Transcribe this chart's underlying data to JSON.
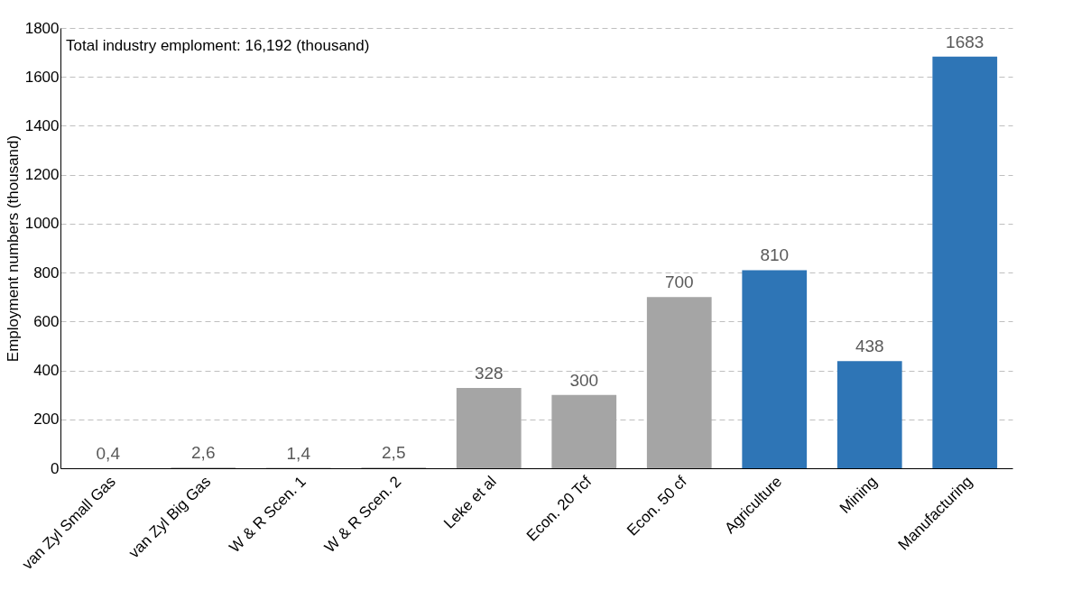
{
  "chart_data": {
    "type": "bar",
    "ylabel": "Employment numbers (thousand)",
    "annotations": [
      "Total industry emploment: 16,192 (thousand)"
    ],
    "categories": [
      "van Zyl Small Gas",
      "van Zyl Big Gas",
      "W & R Scen. 1",
      "W & R Scen. 2",
      "Leke et al",
      "Econ. 20 Tcf",
      "Econ. 50 cf",
      "Agriculture",
      "Mining",
      "Manufacturing"
    ],
    "values": [
      0.4,
      2.6,
      1.4,
      2.5,
      328,
      300,
      700,
      810,
      438,
      1683
    ],
    "value_labels": [
      "0,4",
      "2,6",
      "1,4",
      "2,5",
      "328",
      "300",
      "700",
      "810",
      "438",
      "1683"
    ],
    "colors": [
      "#a5a5a5",
      "#a5a5a5",
      "#a5a5a5",
      "#a5a5a5",
      "#a5a5a5",
      "#a5a5a5",
      "#a5a5a5",
      "#2e75b6",
      "#2e75b6",
      "#2e75b6"
    ],
    "ylim": [
      0,
      1800
    ],
    "yticks": [
      0,
      200,
      400,
      600,
      800,
      1000,
      1200,
      1400,
      1600,
      1800
    ],
    "grid": "y"
  }
}
